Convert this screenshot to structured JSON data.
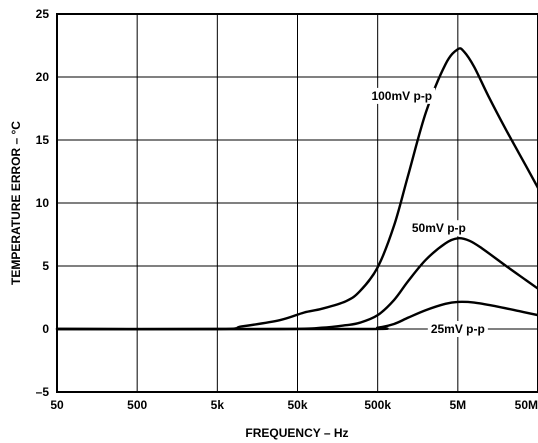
{
  "chart_data": {
    "type": "line",
    "xlabel": "FREQUENCY – Hz",
    "ylabel": "TEMPERATURE ERROR – °C",
    "x_scale": "log",
    "xlim": [
      50,
      50000000
    ],
    "ylim": [
      -5,
      25
    ],
    "grid": true,
    "x_ticks": [
      {
        "value": 50,
        "label": "50"
      },
      {
        "value": 500,
        "label": "500"
      },
      {
        "value": 5000,
        "label": "5k"
      },
      {
        "value": 50000,
        "label": "50k"
      },
      {
        "value": 500000,
        "label": "500k"
      },
      {
        "value": 5000000,
        "label": "5M"
      },
      {
        "value": 50000000,
        "label": "50M"
      }
    ],
    "y_ticks": [
      {
        "value": 25,
        "label": "25"
      },
      {
        "value": 20,
        "label": "20"
      },
      {
        "value": 15,
        "label": "15"
      },
      {
        "value": 10,
        "label": "10"
      },
      {
        "value": 5,
        "label": "5"
      },
      {
        "value": 0,
        "label": "0"
      },
      {
        "value": -5,
        "label": "–5"
      }
    ],
    "series": [
      {
        "name": "100mV p-p",
        "label_at": [
          1000000,
          18.5
        ],
        "x": [
          50,
          5000,
          10000,
          30000,
          60000,
          100000,
          200000,
          300000,
          500000,
          800000,
          1200000,
          2000000,
          3500000,
          5000000,
          6000000,
          8000000,
          12000000,
          20000000,
          35000000,
          50000000
        ],
        "y": [
          0,
          0,
          0.2,
          0.7,
          1.3,
          1.6,
          2.2,
          3.0,
          4.9,
          8.2,
          12.2,
          17.2,
          21.0,
          22.2,
          22.0,
          20.8,
          18.5,
          15.8,
          13.0,
          11.2
        ]
      },
      {
        "name": "50mV p-p",
        "label_at": [
          2900000,
          8.0
        ],
        "x": [
          50,
          30000,
          100000,
          200000,
          300000,
          500000,
          800000,
          1200000,
          2000000,
          3500000,
          5000000,
          7000000,
          10000000,
          20000000,
          35000000,
          50000000
        ],
        "y": [
          0,
          0,
          0.1,
          0.3,
          0.5,
          1.1,
          2.3,
          3.8,
          5.5,
          6.8,
          7.2,
          7.0,
          6.4,
          5.0,
          3.9,
          3.2
        ]
      },
      {
        "name": "25mV p-p",
        "label_at": [
          5000000,
          0
        ],
        "x": [
          50,
          300000,
          500000,
          800000,
          1200000,
          2000000,
          3500000,
          5000000,
          8000000,
          15000000,
          30000000,
          50000000
        ],
        "y": [
          0,
          0,
          0.1,
          0.4,
          0.9,
          1.5,
          2.0,
          2.15,
          2.1,
          1.8,
          1.4,
          1.1
        ]
      }
    ]
  }
}
